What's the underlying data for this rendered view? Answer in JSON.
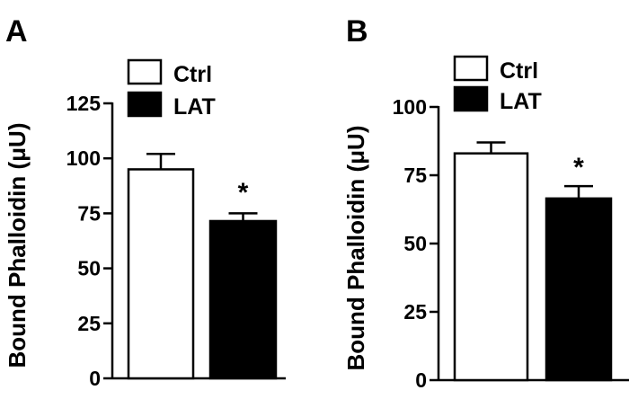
{
  "chart_data": [
    {
      "panel_label": "A",
      "type": "bar",
      "ylabel": "Bound Phalloidin (μU)",
      "ylim": [
        0,
        125
      ],
      "yticks": [
        0,
        25,
        50,
        75,
        100,
        125
      ],
      "categories": [
        "Ctrl",
        "LAT"
      ],
      "values": [
        95,
        71.5
      ],
      "errors": [
        7,
        3.5
      ],
      "bar_colors": [
        "#ffffff",
        "#000000"
      ],
      "significance": [
        "",
        "*"
      ],
      "legend": [
        {
          "label": "Ctrl",
          "color": "#ffffff"
        },
        {
          "label": "LAT",
          "color": "#000000"
        }
      ],
      "legend_position": "top"
    },
    {
      "panel_label": "B",
      "type": "bar",
      "ylabel": "Bound Phalloidin (μU)",
      "ylim": [
        0,
        100
      ],
      "yticks": [
        0,
        25,
        50,
        75,
        100
      ],
      "categories": [
        "Ctrl",
        "LAT"
      ],
      "values": [
        83,
        66.5
      ],
      "errors": [
        4,
        4.5
      ],
      "bar_colors": [
        "#ffffff",
        "#000000"
      ],
      "significance": [
        "",
        "*"
      ],
      "legend": [
        {
          "label": "Ctrl",
          "color": "#ffffff"
        },
        {
          "label": "LAT",
          "color": "#000000"
        }
      ],
      "legend_position": "top"
    }
  ]
}
